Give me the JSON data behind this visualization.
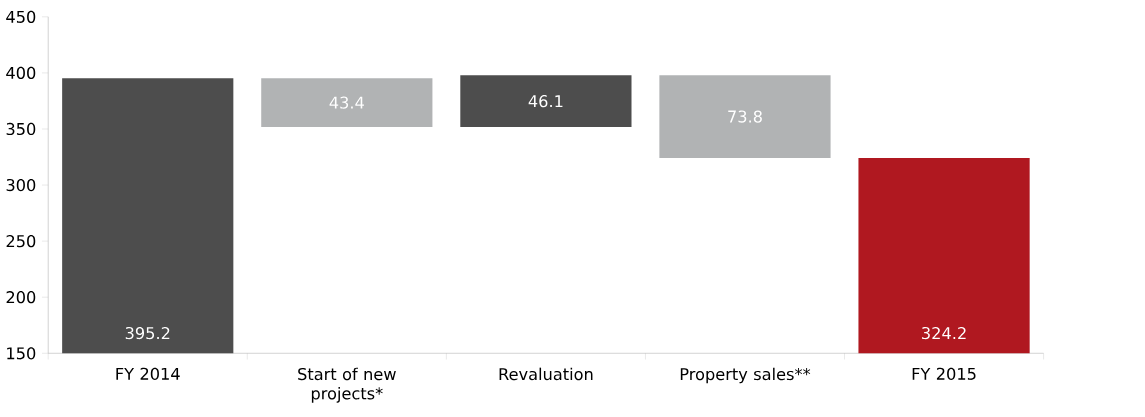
{
  "chart_data": {
    "type": "bar",
    "categories": [
      "FY 2014",
      "Start of new projects*",
      "Revaluation",
      "Property sales**",
      "FY 2015"
    ],
    "values": [
      395.2,
      43.4,
      46.1,
      73.8,
      324.2
    ],
    "base": [
      null,
      351.8,
      351.8,
      324.2,
      null
    ],
    "colors": [
      "#4d4d4d",
      "#b1b3b4",
      "#4d4d4d",
      "#b1b3b4",
      "#b01820"
    ],
    "ylim": [
      150,
      450
    ],
    "yticks": [
      150,
      200,
      250,
      300,
      350,
      400,
      450
    ],
    "data_labels": true
  }
}
